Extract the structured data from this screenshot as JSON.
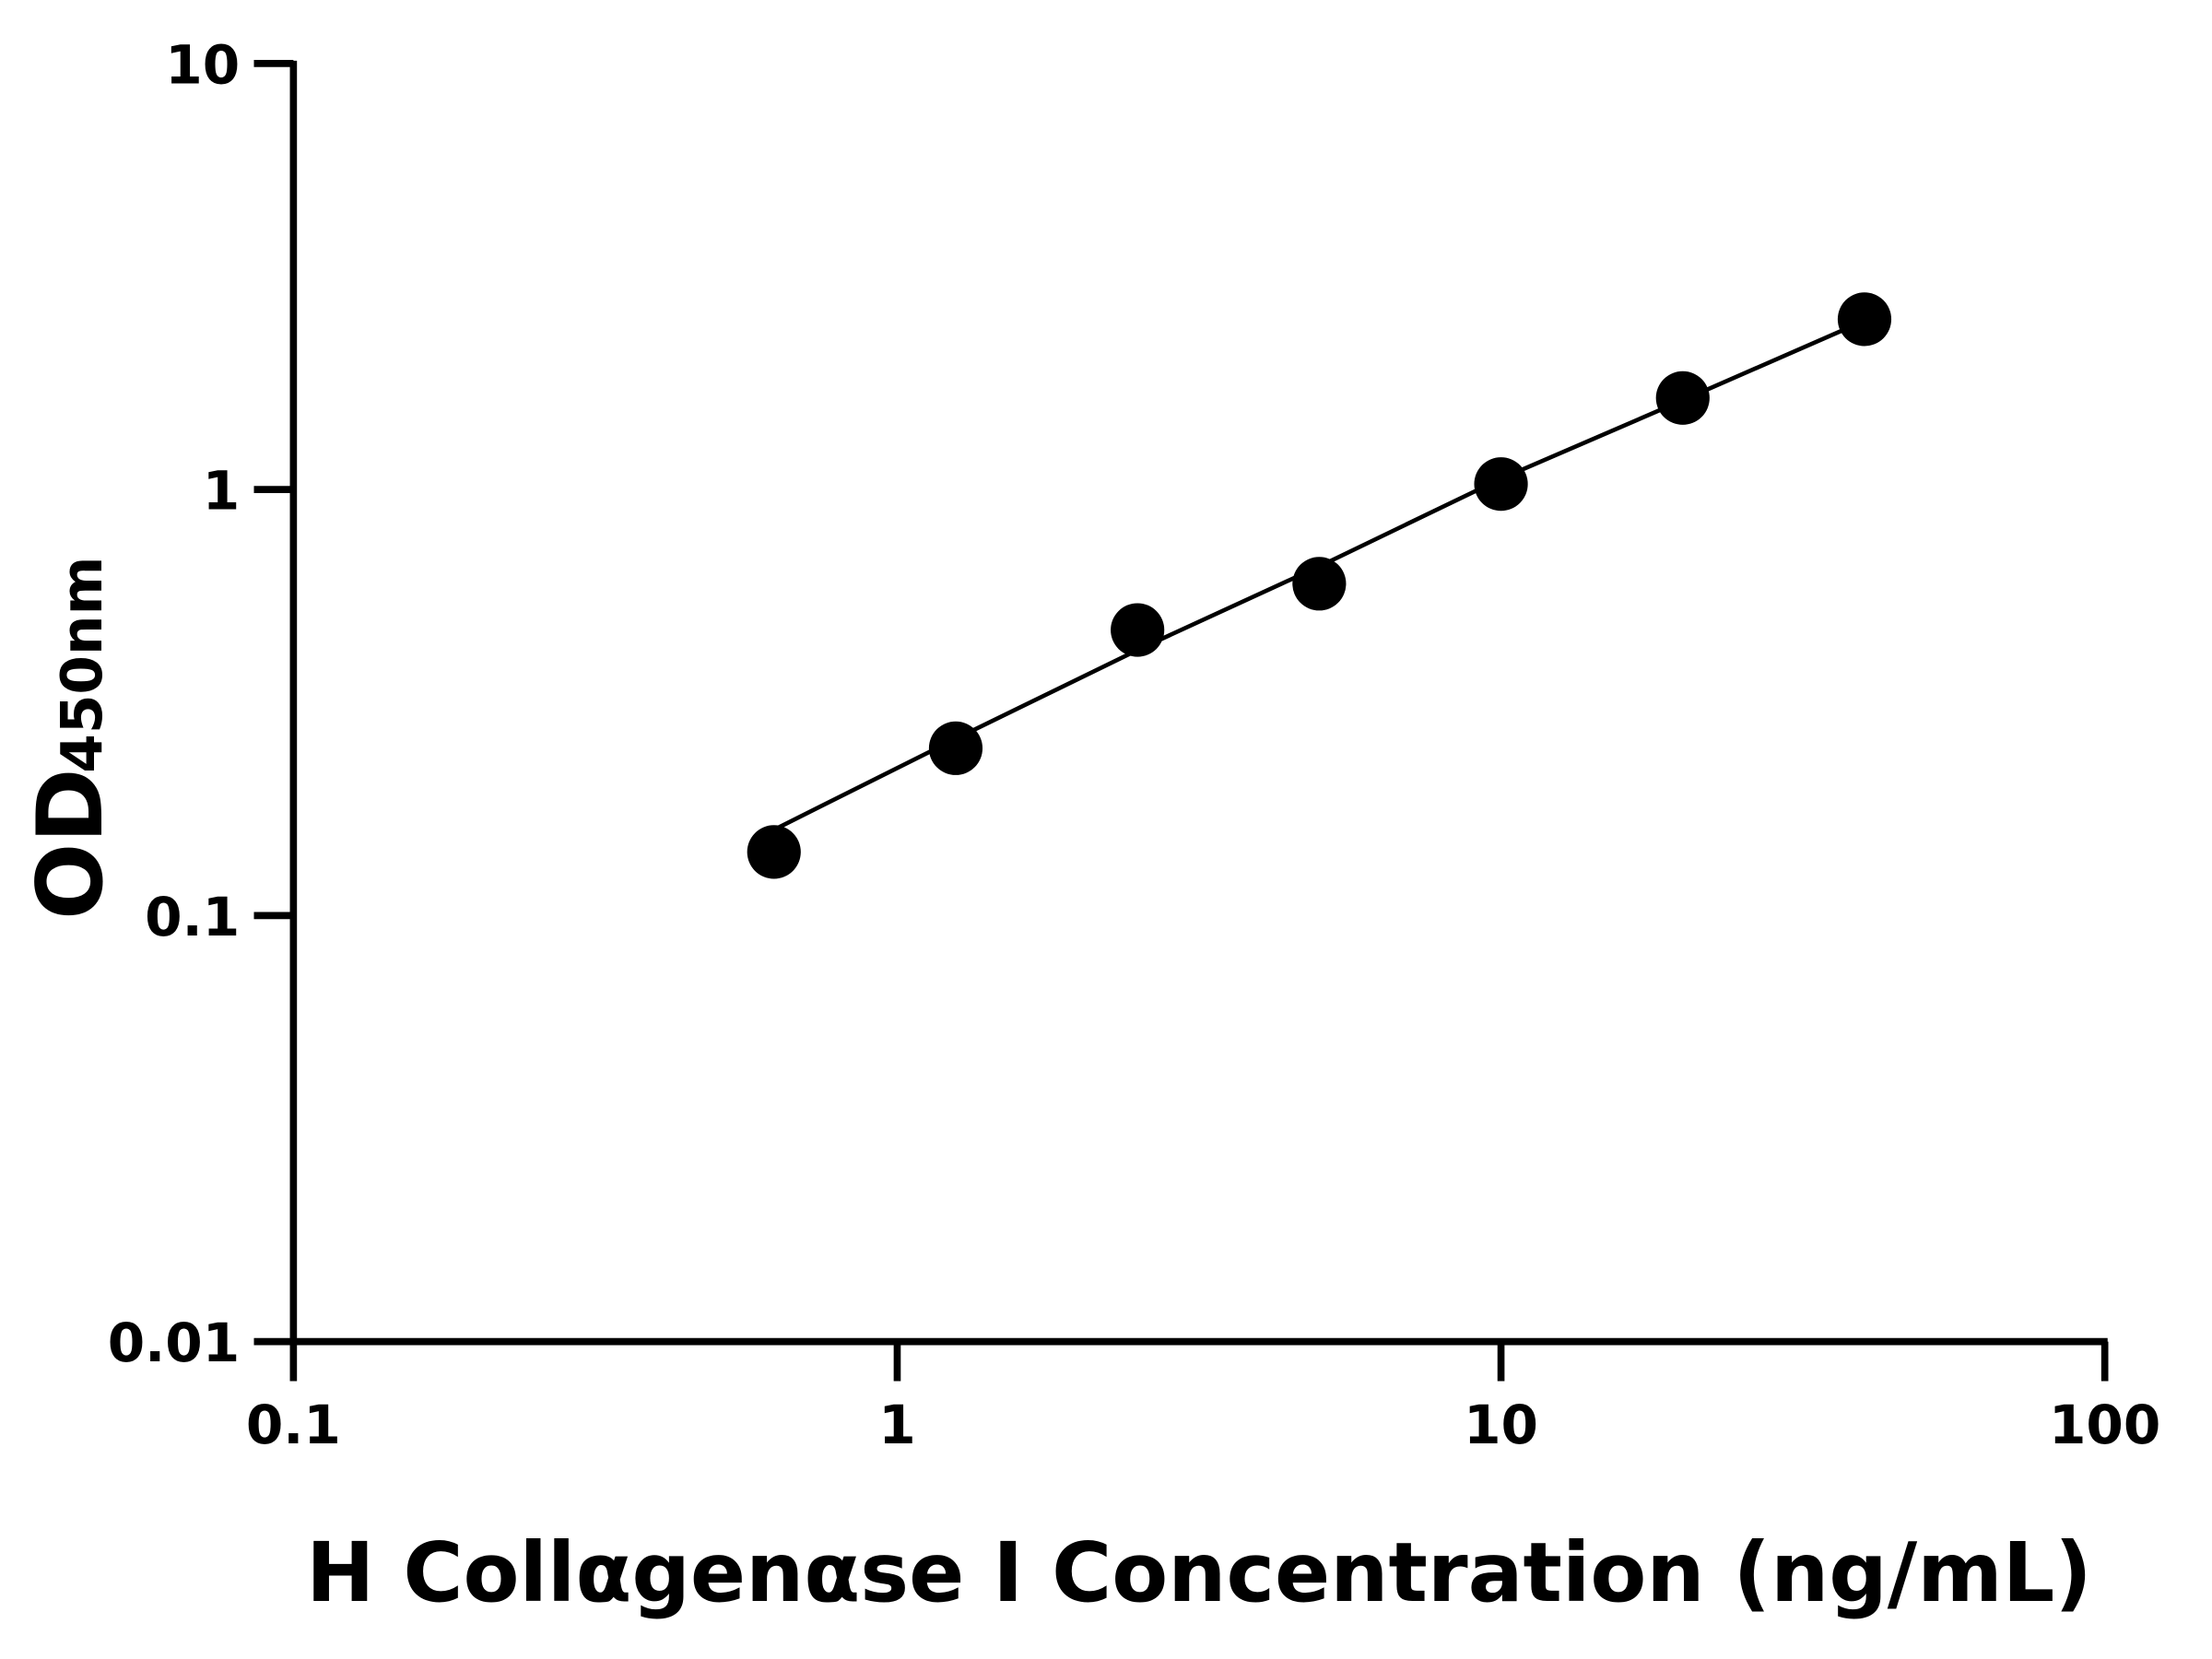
{
  "chart_data": {
    "type": "scatter",
    "x_label": "H Collαgenαse I Concentration (ng/mL)",
    "y_label": "OD",
    "y_label_sub": "450nm",
    "x": [
      0.625,
      1.25,
      2.5,
      5,
      10,
      20,
      40
    ],
    "values": [
      0.141,
      0.247,
      0.468,
      0.601,
      1.03,
      1.64,
      2.51
    ],
    "color": "#000000",
    "fit": {
      "x": [
        0.625,
        1.25,
        2.5,
        5,
        10,
        20,
        40
      ],
      "values": [
        0.159,
        0.26,
        0.42,
        0.66,
        1.06,
        1.62,
        2.49
      ]
    },
    "xlog": true,
    "ylog": true,
    "xlim": [
      0.1,
      100
    ],
    "ylim": [
      0.01,
      10
    ],
    "xticks": [
      0.1,
      1,
      10,
      100
    ],
    "yticks": [
      0.01,
      0.1,
      1,
      10
    ]
  }
}
